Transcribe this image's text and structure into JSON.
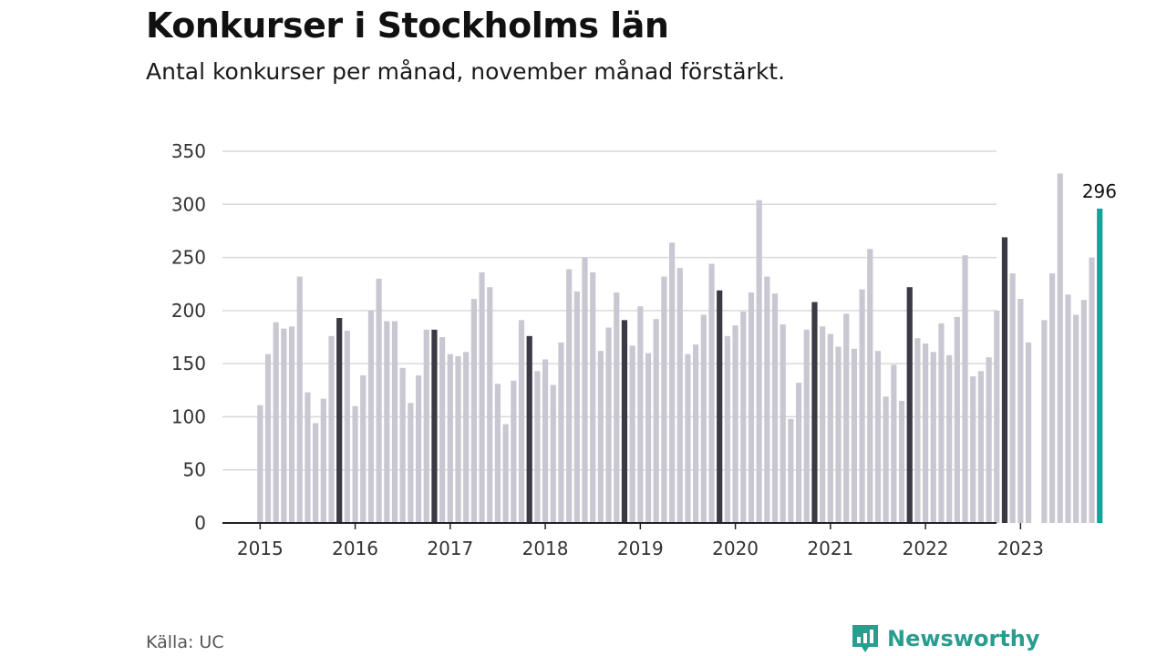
{
  "title": "Konkurser i Stockholms län",
  "subtitle": "Antal konkurser per månad, november månad förstärkt.",
  "source": "Källa: UC",
  "brand": "Newsworthy",
  "colors": {
    "default": "#c9c8d2",
    "november": "#3a3944",
    "latest": "#17a39a",
    "grid": "#d9d9d9",
    "axis": "#222222",
    "brand": "#2a9d8f"
  },
  "chart_data": {
    "type": "bar",
    "ylim": [
      0,
      350
    ],
    "yticks": [
      0,
      50,
      100,
      150,
      200,
      250,
      300,
      350
    ],
    "xticks": [
      "2015",
      "2016",
      "2017",
      "2018",
      "2019",
      "2020",
      "2021",
      "2022",
      "2023"
    ],
    "start": "2015-01",
    "highlight": "november",
    "annotation": {
      "label": "296",
      "month": "2023-11"
    },
    "grid": true,
    "values": [
      111,
      159,
      189,
      183,
      185,
      232,
      123,
      94,
      117,
      176,
      193,
      181,
      110,
      139,
      200,
      230,
      190,
      190,
      146,
      113,
      139,
      182,
      182,
      175,
      159,
      157,
      161,
      211,
      236,
      222,
      131,
      93,
      134,
      191,
      176,
      143,
      154,
      130,
      170,
      239,
      218,
      250,
      236,
      162,
      184,
      217,
      191,
      167,
      204,
      160,
      192,
      232,
      264,
      240,
      159,
      168,
      196,
      244,
      219,
      176,
      186,
      199,
      217,
      304,
      232,
      216,
      187,
      98,
      132,
      182,
      208,
      185,
      178,
      166,
      197,
      164,
      220,
      258,
      162,
      119,
      149,
      115,
      222,
      174,
      169,
      161,
      188,
      158,
      194,
      252,
      138,
      143,
      156,
      200,
      269,
      235,
      211,
      170,
      0,
      191,
      235,
      329,
      215,
      196,
      210,
      250,
      296
    ]
  }
}
